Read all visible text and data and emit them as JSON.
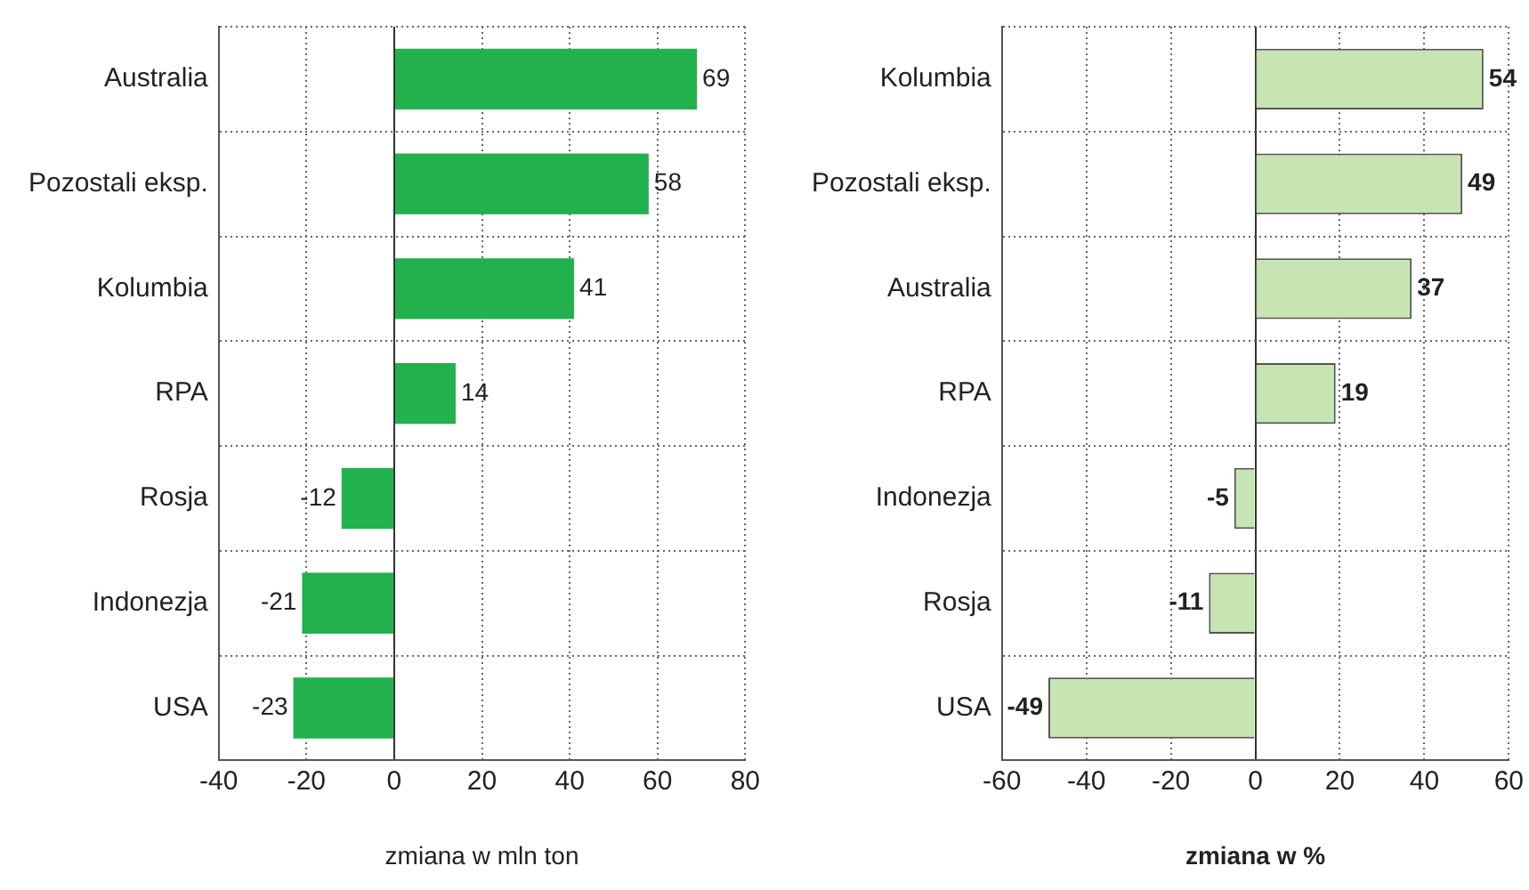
{
  "chart_data": [
    {
      "type": "bar",
      "orientation": "horizontal",
      "categories": [
        "Australia",
        "Pozostali eksp.",
        "Kolumbia",
        "RPA",
        "Rosja",
        "Indonezja",
        "USA"
      ],
      "values": [
        69,
        58,
        41,
        14,
        -12,
        -21,
        -23
      ],
      "color": "#22b14c",
      "xlim": [
        -40,
        80
      ],
      "xticks": [
        -40,
        -20,
        0,
        20,
        40,
        60,
        80
      ],
      "xlabel": "zmiana w mln ton",
      "grid": true,
      "data_labels": true
    },
    {
      "type": "bar",
      "orientation": "horizontal",
      "categories": [
        "Kolumbia",
        "Pozostali eksp.",
        "Australia",
        "RPA",
        "Indonezja",
        "Rosja",
        "USA"
      ],
      "values": [
        54,
        49,
        37,
        19,
        -5,
        -11,
        -49
      ],
      "color": "#c6e5b3",
      "xlim": [
        -60,
        60
      ],
      "xticks": [
        -60,
        -40,
        -20,
        0,
        20,
        40,
        60
      ],
      "xlabel": "zmiana w %",
      "grid": true,
      "data_labels": true
    }
  ]
}
